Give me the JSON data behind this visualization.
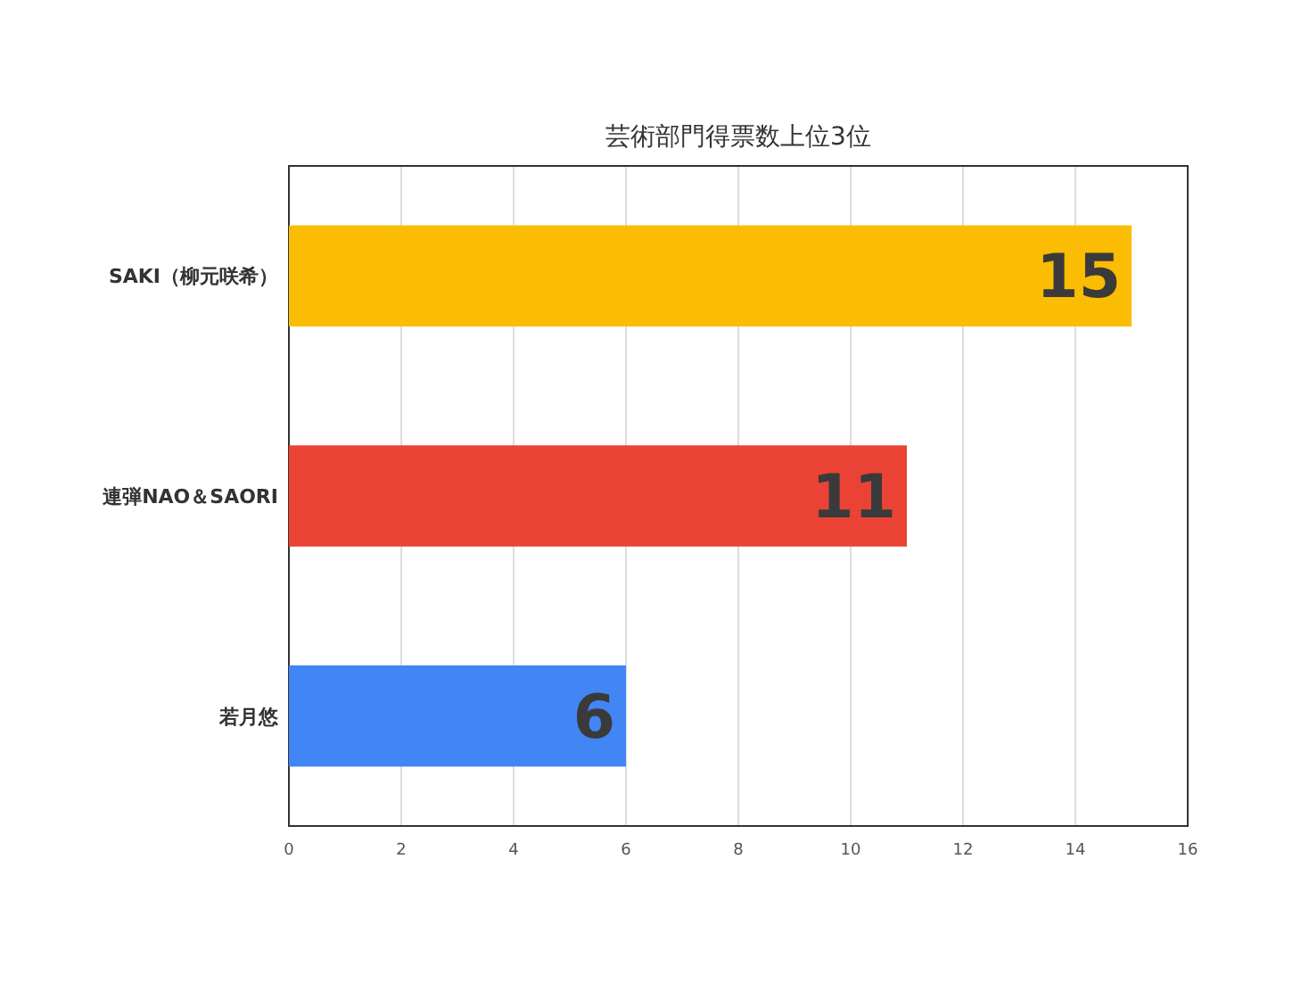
{
  "chart_data": {
    "type": "bar",
    "orientation": "horizontal",
    "title": "芸術部門得票数上位3位",
    "categories": [
      "SAKI（柳元咲希）",
      "連弾NAO＆SAORI",
      "若月悠"
    ],
    "values": [
      15,
      11,
      6
    ],
    "colors": [
      "#fbbc04",
      "#ea4335",
      "#4285f4"
    ],
    "xlim": [
      0,
      16
    ],
    "xticks": [
      0,
      2,
      4,
      6,
      8,
      10,
      12,
      14,
      16
    ],
    "grid": "x",
    "data_labels": true
  }
}
